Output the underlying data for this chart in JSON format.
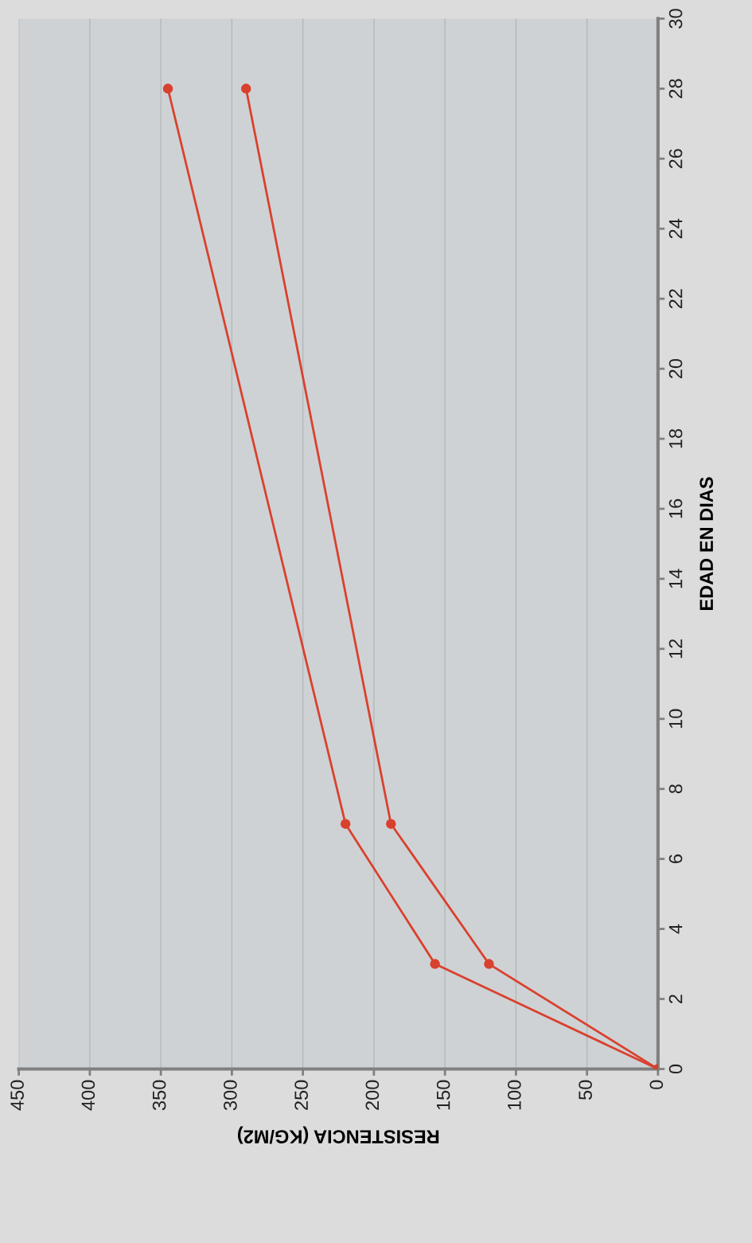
{
  "chart_data": {
    "type": "line",
    "xlabel": "RESISTENCIA (KG/M2)",
    "ylabel": "EDAD EN DIAS",
    "series": [
      {
        "color": "#d9412f",
        "x": [
          0,
          157,
          220,
          345
        ],
        "values": [
          0,
          3,
          7,
          28
        ]
      },
      {
        "color": "#d9412f",
        "x": [
          0,
          119,
          188,
          290
        ],
        "values": [
          0,
          3,
          7,
          28
        ]
      }
    ],
    "xlim": [
      450,
      0
    ],
    "xticks": [
      450,
      400,
      350,
      300,
      250,
      200,
      150,
      100,
      50,
      0
    ],
    "ylim": [
      0,
      30
    ],
    "yticks": [
      0,
      2,
      4,
      6,
      8,
      10,
      12,
      14,
      16,
      18,
      20,
      22,
      24,
      26,
      28,
      30
    ],
    "grid": "x",
    "marker": "circle",
    "line_style": "solid"
  }
}
